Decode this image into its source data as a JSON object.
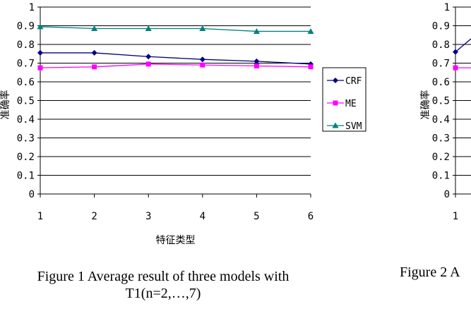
{
  "chart_data": [
    {
      "type": "line",
      "caption": "Figure 1 Average result of three models with T1(n=2,…,7)",
      "xlabel": "特征类型",
      "ylabel": "准确率",
      "x": [
        1,
        2,
        3,
        4,
        5,
        6
      ],
      "ylim": [
        0,
        1
      ],
      "yticks": [
        "0",
        "0.1",
        "0.2",
        "0.3",
        "0.4",
        "0.5",
        "0.6",
        "0.7",
        "0.8",
        "0.9",
        "1"
      ],
      "grid": true,
      "legend": "right",
      "series": [
        {
          "name": "CRF",
          "color": "#000080",
          "marker": "diamond",
          "values": [
            0.755,
            0.755,
            0.735,
            0.72,
            0.71,
            0.695
          ]
        },
        {
          "name": "ME",
          "color": "#ff00ff",
          "marker": "square",
          "values": [
            0.675,
            0.68,
            0.695,
            0.69,
            0.685,
            0.68
          ]
        },
        {
          "name": "SVM",
          "color": "#008080",
          "marker": "triangle",
          "values": [
            0.895,
            0.885,
            0.885,
            0.885,
            0.87,
            0.87
          ]
        }
      ]
    },
    {
      "type": "line",
      "caption": "Figure 2 A",
      "xlabel": "",
      "ylabel": "准确率",
      "x": [
        1
      ],
      "ylim": [
        0,
        1
      ],
      "yticks": [
        "0",
        "0.1",
        "0.2",
        "0.3",
        "0.4",
        "0.5",
        "0.6",
        "0.7",
        "0.8",
        "0.9",
        "1"
      ],
      "grid": true,
      "series": [
        {
          "color": "#000080",
          "marker": "diamond",
          "values": [
            0.76
          ]
        },
        {
          "color": "#ff00ff",
          "marker": "square",
          "values": [
            0.675
          ]
        }
      ]
    }
  ]
}
